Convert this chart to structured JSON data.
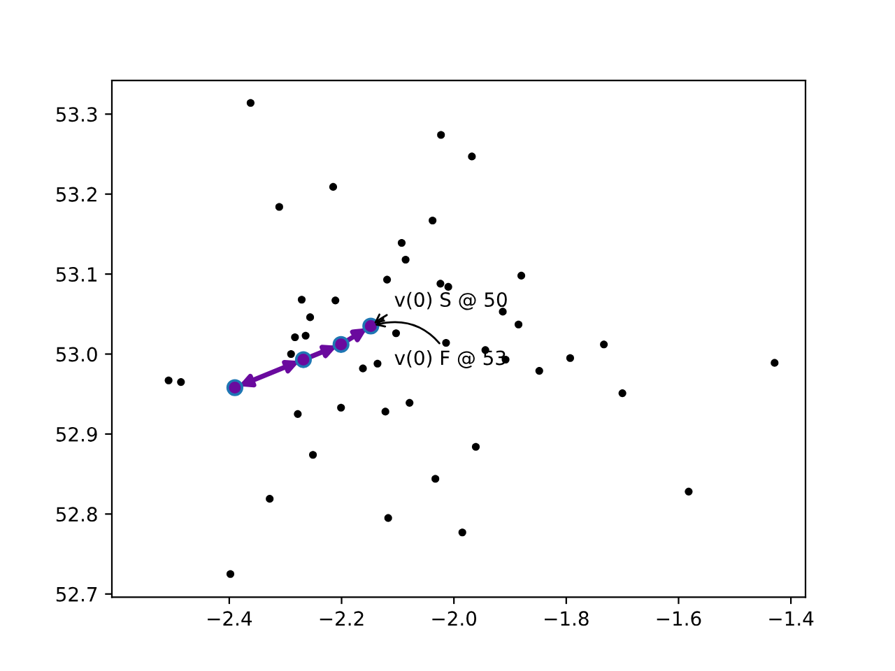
{
  "chart_data": {
    "type": "scatter",
    "xlim": [
      -2.609,
      -1.374
    ],
    "ylim": [
      52.696,
      53.342
    ],
    "xticks": [
      {
        "value": -2.4,
        "label": "−2.4"
      },
      {
        "value": -2.2,
        "label": "−2.2"
      },
      {
        "value": -2.0,
        "label": "−2.0"
      },
      {
        "value": -1.8,
        "label": "−1.8"
      },
      {
        "value": -1.6,
        "label": "−1.6"
      },
      {
        "value": -1.4,
        "label": "−1.4"
      }
    ],
    "yticks": [
      52.7,
      52.8,
      52.9,
      {
        "value": 53.0,
        "label": "53.0"
      },
      53.1,
      53.2,
      53.3
    ],
    "grid": false,
    "legend": false,
    "marker": "circle",
    "series": [
      {
        "color": "#000000",
        "x": [
          -2.362,
          -2.311,
          -2.215,
          -2.023,
          -1.968,
          -2.038,
          -2.093,
          -2.086,
          -2.119,
          -2.024,
          -2.01,
          -1.88,
          -2.271,
          -2.211,
          -2.256,
          -1.913,
          -1.885,
          -2.283,
          -2.264,
          -2.103,
          -2.29,
          -2.014,
          -1.944,
          -1.908,
          -2.136,
          -2.162,
          -2.508,
          -2.486,
          -1.848,
          -1.793,
          -1.733,
          -1.7,
          -1.429,
          -2.201,
          -2.278,
          -2.122,
          -2.079,
          -2.251,
          -1.961,
          -2.328,
          -2.033,
          -1.582,
          -2.117,
          -1.985,
          -2.398
        ],
        "values": [
          53.314,
          53.184,
          53.209,
          53.274,
          53.247,
          53.167,
          53.139,
          53.118,
          53.093,
          53.088,
          53.084,
          53.098,
          53.068,
          53.067,
          53.046,
          53.053,
          53.037,
          53.021,
          53.023,
          53.026,
          53.0,
          53.014,
          53.005,
          52.993,
          52.988,
          52.982,
          52.967,
          52.965,
          52.979,
          52.995,
          53.012,
          52.951,
          52.989,
          52.933,
          52.925,
          52.928,
          52.939,
          52.874,
          52.884,
          52.819,
          52.844,
          52.828,
          52.795,
          52.777,
          52.725
        ]
      },
      {
        "color": "#6a0a9e",
        "x": [
          -2.39,
          -2.268,
          -2.201,
          -2.148
        ],
        "values": [
          52.958,
          52.993,
          53.012,
          53.035
        ]
      }
    ],
    "annotations": [
      {
        "text": "v(0) S @ 50",
        "x": -2.148,
        "y": 53.035
      },
      {
        "text": "v(0) F @ 53",
        "x": -2.148,
        "y": 53.035
      }
    ]
  }
}
